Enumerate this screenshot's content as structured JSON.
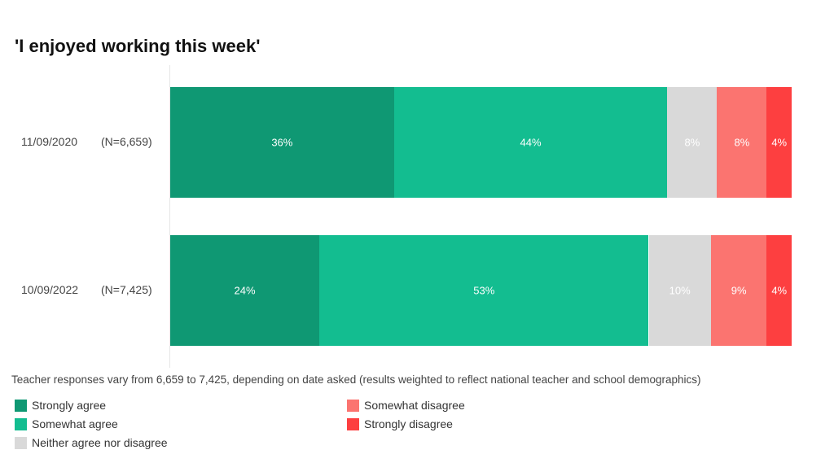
{
  "chart_data": {
    "type": "bar",
    "orientation": "horizontal",
    "stacked": true,
    "title": "'I enjoyed working this week'",
    "categories": [
      {
        "date": "11/09/2020",
        "n": "(N=6,659)"
      },
      {
        "date": "10/09/2022",
        "n": "(N=7,425)"
      }
    ],
    "series": [
      {
        "name": "Strongly agree",
        "color": "#0f9873",
        "values": [
          36,
          24
        ]
      },
      {
        "name": "Somewhat agree",
        "color": "#13bd90",
        "values": [
          44,
          53
        ]
      },
      {
        "name": "Neither agree nor disagree",
        "color": "#d9d9d9",
        "values": [
          8,
          10
        ]
      },
      {
        "name": "Somewhat disagree",
        "color": "#fb7470",
        "values": [
          8,
          9
        ]
      },
      {
        "name": "Strongly disagree",
        "color": "#fd3f40",
        "values": [
          4,
          4
        ]
      }
    ],
    "xlim": [
      0,
      100
    ],
    "note": "Teacher responses vary from 6,659 to 7,425, depending on date asked (results weighted to reflect national teacher and school demographics)",
    "legend_position": "bottom"
  }
}
